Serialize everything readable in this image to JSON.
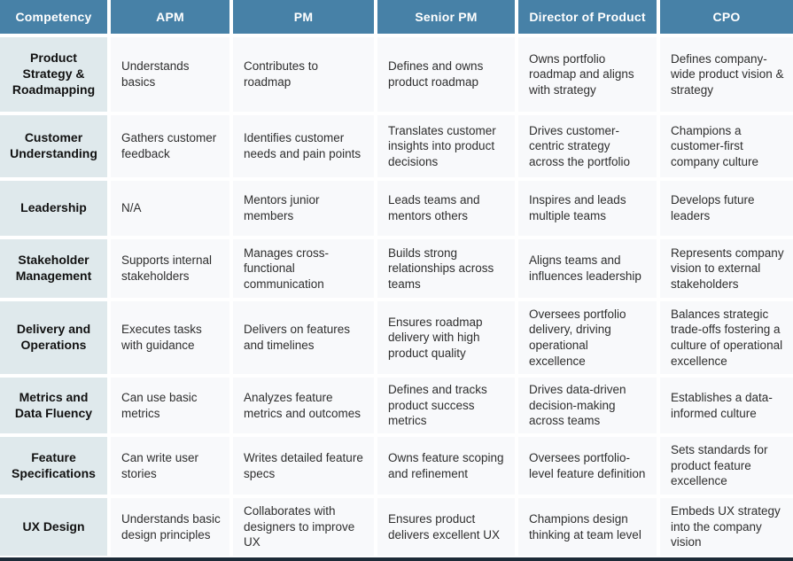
{
  "table": {
    "columns": [
      "Competency",
      "APM",
      "PM",
      "Senior PM",
      "Director of Product",
      "CPO"
    ],
    "rows": [
      {
        "competency": "Product Strategy & Roadmapping",
        "cells": [
          "Understands basics",
          "Contributes to roadmap",
          "Defines and owns product roadmap",
          "Owns portfolio roadmap and aligns with strategy",
          "Defines company-wide product vision & strategy"
        ]
      },
      {
        "competency": "Customer Understanding",
        "cells": [
          "Gathers customer feedback",
          "Identifies customer needs and pain points",
          "Translates customer insights into product decisions",
          "Drives customer-centric strategy across the portfolio",
          "Champions a customer-first company culture"
        ]
      },
      {
        "competency": "Leadership",
        "cells": [
          "N/A",
          "Mentors junior members",
          "Leads teams and mentors others",
          "Inspires and leads multiple teams",
          "Develops future leaders"
        ]
      },
      {
        "competency": "Stakeholder Management",
        "cells": [
          "Supports internal stakeholders",
          "Manages cross-functional communication",
          "Builds strong relationships across teams",
          "Aligns teams and influences leadership",
          "Represents company vision to external stakeholders"
        ]
      },
      {
        "competency": "Delivery and Operations",
        "cells": [
          "Executes tasks with guidance",
          "Delivers on features and timelines",
          "Ensures roadmap delivery with high product quality",
          "Oversees portfolio delivery, driving operational excellence",
          "Balances strategic trade-offs fostering a culture of operational excellence"
        ]
      },
      {
        "competency": "Metrics and Data Fluency",
        "cells": [
          "Can use basic metrics",
          "Analyzes feature metrics and outcomes",
          "Defines and tracks product success metrics",
          "Drives data-driven decision-making across teams",
          "Establishes a data-informed culture"
        ]
      },
      {
        "competency": "Feature Specifications",
        "cells": [
          "Can write user stories",
          "Writes detailed feature specs",
          "Owns feature scoping and refinement",
          "Oversees portfolio-level feature definition",
          "Sets standards for product feature excellence"
        ]
      },
      {
        "competency": "UX Design",
        "cells": [
          "Understands basic design principles",
          "Collaborates with designers to improve UX",
          "Ensures product delivers excellent UX",
          "Champions design thinking at team level",
          "Embeds UX strategy into the company vision"
        ]
      }
    ]
  },
  "colors": {
    "header_bg": "#4781a7",
    "competency_column_bg": "#dfe9ec",
    "data_cell_bg": "#f8f9fb",
    "header_text": "#ffffff",
    "body_text": "#2e2e2e",
    "bottom_bar": "#1d2b38"
  },
  "chart_data": {
    "type": "table",
    "title": "",
    "columns": [
      "Competency",
      "APM",
      "PM",
      "Senior PM",
      "Director of Product",
      "CPO"
    ],
    "rows": [
      [
        "Product Strategy & Roadmapping",
        "Understands basics",
        "Contributes to roadmap",
        "Defines and owns product roadmap",
        "Owns portfolio roadmap and aligns with strategy",
        "Defines company-wide product vision & strategy"
      ],
      [
        "Customer Understanding",
        "Gathers customer feedback",
        "Identifies customer needs and pain points",
        "Translates customer insights into product decisions",
        "Drives customer-centric strategy across the portfolio",
        "Champions a customer-first company culture"
      ],
      [
        "Leadership",
        "N/A",
        "Mentors junior members",
        "Leads teams and mentors others",
        "Inspires and leads multiple teams",
        "Develops future leaders"
      ],
      [
        "Stakeholder Management",
        "Supports internal stakeholders",
        "Manages cross-functional communication",
        "Builds strong relationships across teams",
        "Aligns teams and influences leadership",
        "Represents company vision to external stakeholders"
      ],
      [
        "Delivery and Operations",
        "Executes tasks with guidance",
        "Delivers on features and timelines",
        "Ensures roadmap delivery with high product quality",
        "Oversees portfolio delivery, driving operational excellence",
        "Balances strategic trade-offs fostering a culture of operational excellence"
      ],
      [
        "Metrics and Data Fluency",
        "Can use basic metrics",
        "Analyzes feature metrics and outcomes",
        "Defines and tracks product success metrics",
        "Drives data-driven decision-making across teams",
        "Establishes a data-informed culture"
      ],
      [
        "Feature Specifications",
        "Can write user stories",
        "Writes detailed feature specs",
        "Owns feature scoping and refinement",
        "Oversees portfolio-level feature definition",
        "Sets standards for product feature excellence"
      ],
      [
        "UX Design",
        "Understands basic design principles",
        "Collaborates with designers to improve UX",
        "Ensures product delivers excellent UX",
        "Champions design thinking at team level",
        "Embeds UX strategy into the company vision"
      ]
    ]
  }
}
